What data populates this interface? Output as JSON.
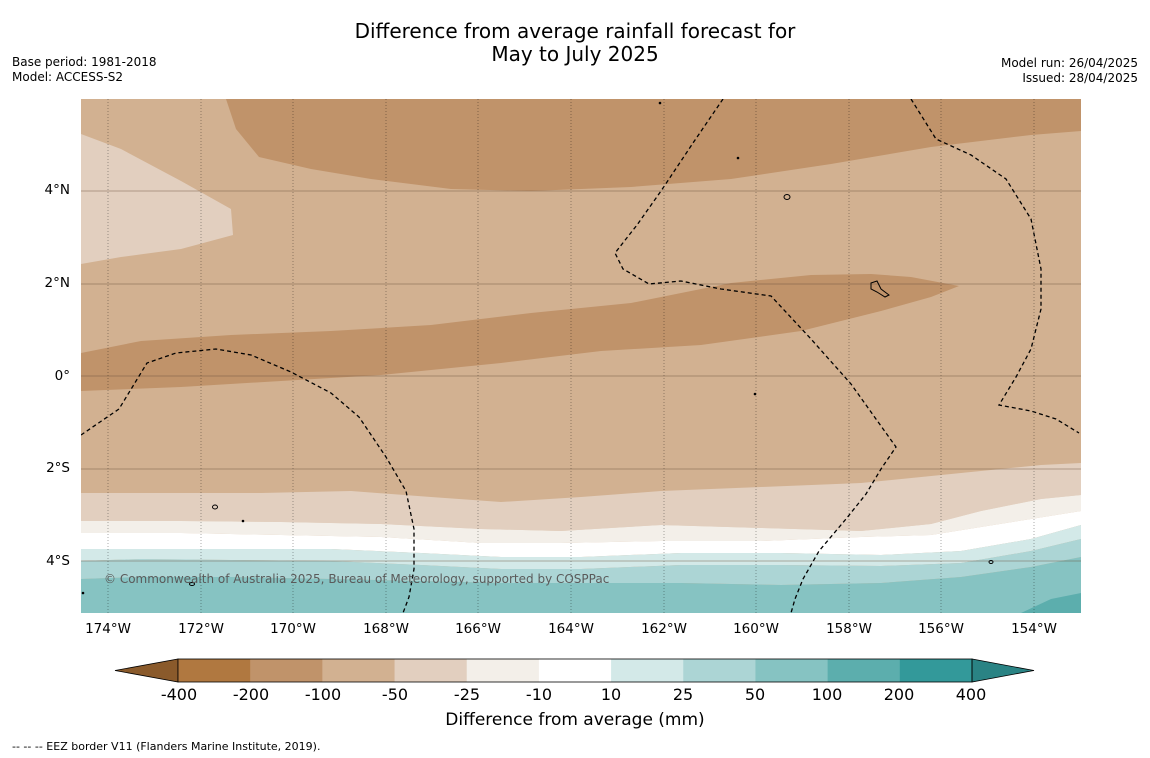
{
  "title": {
    "line1": "Difference from average rainfall forecast for",
    "line2": "May to July 2025"
  },
  "meta": {
    "base_period": "Base period: 1981-2018",
    "model": "Model: ACCESS-S2",
    "model_run": "Model run: 26/04/2025",
    "issued": "Issued: 28/04/2025"
  },
  "map": {
    "lat_ticks": [
      "4°N",
      "2°N",
      "0°",
      "2°S",
      "4°S"
    ],
    "lon_ticks": [
      "174°W",
      "172°W",
      "170°W",
      "168°W",
      "166°W",
      "164°W",
      "162°W",
      "160°W",
      "158°W",
      "156°W",
      "154°W"
    ],
    "copyright": "© Commonwealth of Australia 2025, Bureau of Meteorology, supported by COSPPac"
  },
  "colorbar": {
    "labels": [
      "-400",
      "-200",
      "-100",
      "-50",
      "-25",
      "-10",
      "10",
      "25",
      "50",
      "100",
      "200",
      "400"
    ],
    "colors": [
      "#8a5a2b",
      "#b07840",
      "#c0936a",
      "#d2b191",
      "#e2cfbf",
      "#f3efe9",
      "#ffffff",
      "#d3e9e8",
      "#acd5d5",
      "#86c3c2",
      "#5caead",
      "#33999a",
      "#2a8384"
    ],
    "title": "Difference from average (mm)"
  },
  "footer": {
    "eez_note": "--  --  -- EEZ border V11 (Flanders Marine Institute, 2019)."
  }
}
